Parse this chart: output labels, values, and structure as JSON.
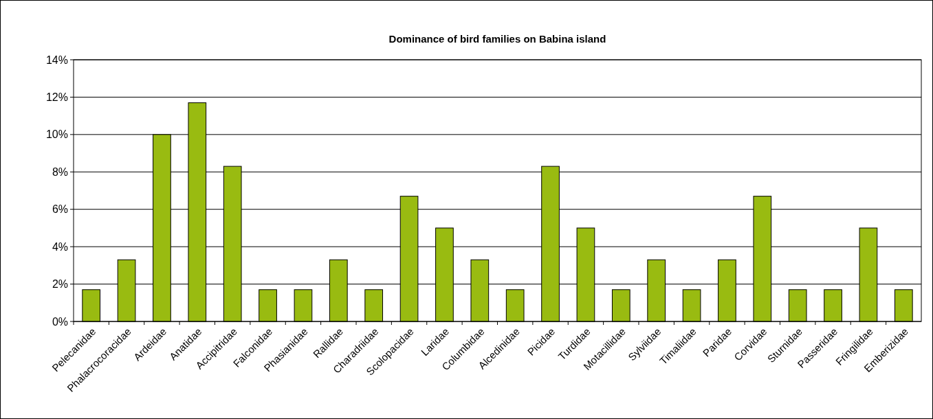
{
  "chart_data": {
    "type": "bar",
    "title": "Dominance of bird families on Babina island",
    "categories": [
      "Pelecanidae",
      "Phalacrocoracidae",
      "Ardeidae",
      "Anatidae",
      "Accipitridae",
      "Falconidae",
      "Phasianidae",
      "Rallidae",
      "Charadriidae",
      "Scolopacidae",
      "Laridae",
      "Columbidae",
      "Alcedinidae",
      "Picidae",
      "Turdidae",
      "Motacillidae",
      "Sylviidae",
      "Timaliidae",
      "Paridae",
      "Corvidae",
      "Sturnidae",
      "Passeridae",
      "Fringilidae",
      "Emberizidae"
    ],
    "values": [
      1.7,
      3.3,
      10,
      11.7,
      8.3,
      1.7,
      1.7,
      3.3,
      1.7,
      6.7,
      5,
      3.3,
      1.7,
      8.3,
      5,
      1.7,
      3.3,
      1.7,
      3.3,
      6.7,
      1.7,
      1.7,
      5,
      1.7
    ],
    "color": "#99bb11",
    "ylim": [
      0,
      14
    ],
    "yticks": [
      {
        "value": 0,
        "label": "0%"
      },
      {
        "value": 2,
        "label": "2%"
      },
      {
        "value": 4,
        "label": "4%"
      },
      {
        "value": 6,
        "label": "6%"
      },
      {
        "value": 8,
        "label": "8%"
      },
      {
        "value": 10,
        "label": "10%"
      },
      {
        "value": 12,
        "label": "12%"
      },
      {
        "value": 14,
        "label": "14%"
      }
    ],
    "grid": "y"
  }
}
